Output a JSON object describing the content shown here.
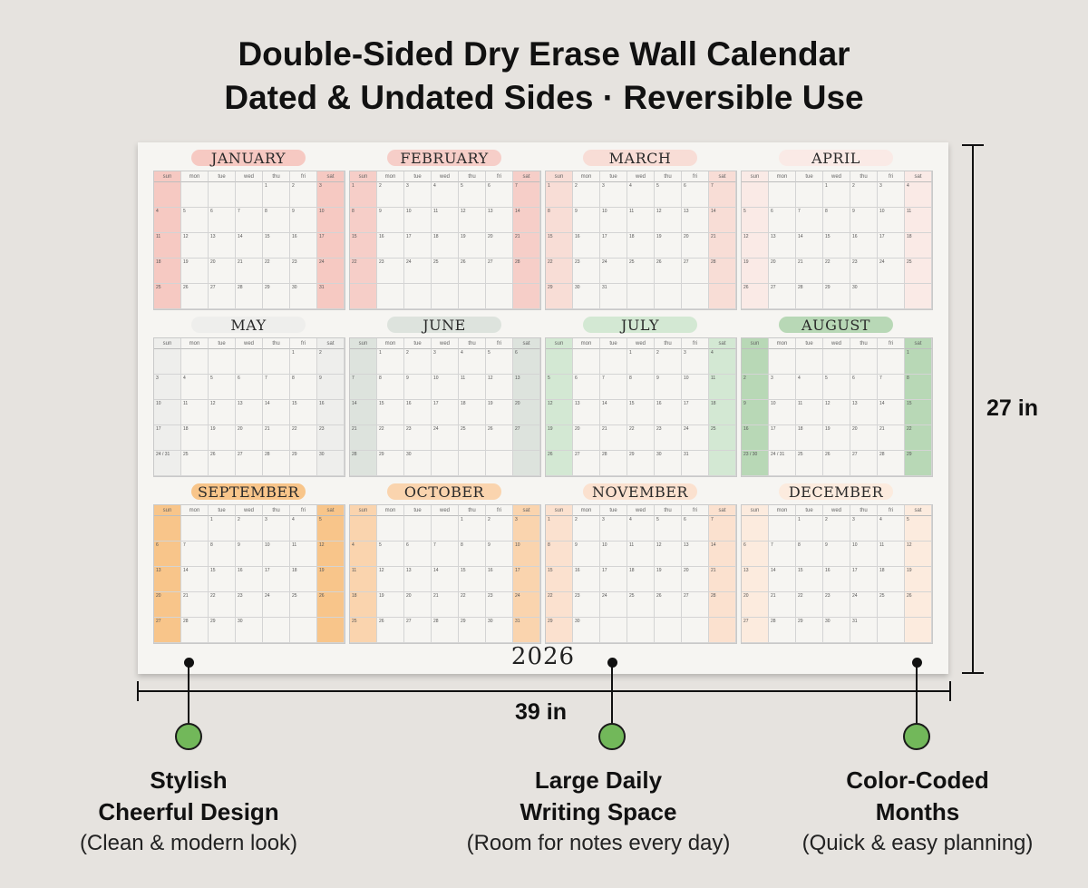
{
  "headline": {
    "line1": "Double-Sided Dry Erase Wall Calendar",
    "line2": "Dated & Undated Sides · Reversible Use"
  },
  "calendar": {
    "year": "2026",
    "day_headers": [
      "sun",
      "mon",
      "tue",
      "wed",
      "thu",
      "fri",
      "sat"
    ],
    "months": [
      {
        "name": "JANUARY",
        "color": "#f6c9c2",
        "first": 4,
        "days": 31
      },
      {
        "name": "FEBRUARY",
        "color": "#f6cec8",
        "first": 0,
        "days": 28
      },
      {
        "name": "MARCH",
        "color": "#f8ddd6",
        "first": 0,
        "days": 31
      },
      {
        "name": "APRIL",
        "color": "#faeae6",
        "first": 3,
        "days": 30
      },
      {
        "name": "MAY",
        "color": "#eeeeec",
        "first": 5,
        "days": 31
      },
      {
        "name": "JUNE",
        "color": "#dde3dd",
        "first": 1,
        "days": 30
      },
      {
        "name": "JULY",
        "color": "#d3e8d3",
        "first": 3,
        "days": 31
      },
      {
        "name": "AUGUST",
        "color": "#b8d8b6",
        "first": 6,
        "days": 31
      },
      {
        "name": "SEPTEMBER",
        "color": "#f8c58a",
        "first": 2,
        "days": 30
      },
      {
        "name": "OCTOBER",
        "color": "#fad4ae",
        "first": 4,
        "days": 31
      },
      {
        "name": "NOVEMBER",
        "color": "#fbe1cf",
        "first": 0,
        "days": 30
      },
      {
        "name": "DECEMBER",
        "color": "#fcebde",
        "first": 2,
        "days": 31
      }
    ]
  },
  "dimensions": {
    "height": "27 in",
    "width": "39 in"
  },
  "features": [
    {
      "title_line1": "Stylish",
      "title_line2": "Cheerful Design",
      "subtitle": "(Clean & modern look)"
    },
    {
      "title_line1": "Large Daily",
      "title_line2": "Writing Space",
      "subtitle": "(Room for notes every day)"
    },
    {
      "title_line1": "Color-Coded",
      "title_line2": "Months",
      "subtitle": "(Quick & easy planning)"
    }
  ],
  "colors": {
    "background": "#e6e3df",
    "sheet": "#f6f5f2",
    "bullet_green": "#72b85a"
  }
}
